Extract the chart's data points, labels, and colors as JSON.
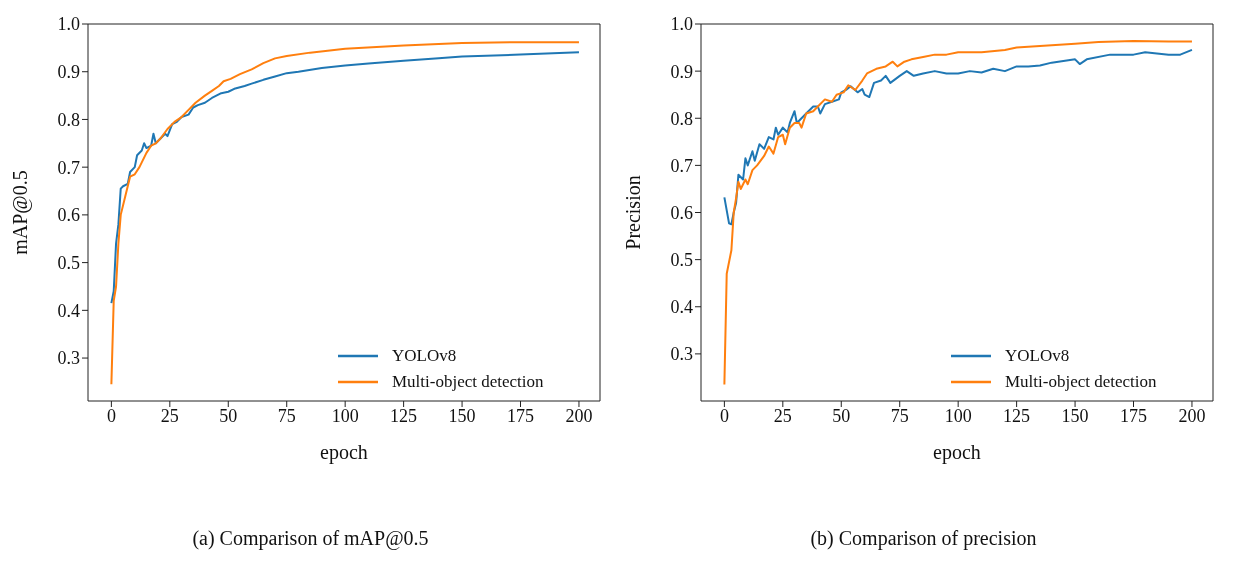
{
  "chart_data": [
    {
      "type": "line",
      "title": "(a) Comparison of mAP@0.5",
      "xlabel": "epoch",
      "ylabel": "mAP@0.5",
      "xlim": [
        -10,
        209
      ],
      "xticks": [
        0,
        25,
        50,
        75,
        100,
        125,
        150,
        175,
        200
      ],
      "ylim": [
        0.21,
        1.0
      ],
      "yticks": [
        0.3,
        0.4,
        0.5,
        0.6,
        0.7,
        0.8,
        0.9,
        {
          "value": 1.0,
          "label": "1.0"
        }
      ],
      "grid": false,
      "legend": "bottom right",
      "marker": "none",
      "line_style": "solid",
      "series": [
        {
          "name": "YOLOv8",
          "color": "#1f77b4",
          "x": [
            0,
            1,
            2,
            3,
            4,
            5,
            7,
            8,
            10,
            11,
            13,
            14,
            15,
            17,
            18,
            19,
            21,
            23,
            24,
            26,
            28,
            30,
            33,
            35,
            37,
            40,
            43,
            47,
            50,
            53,
            57,
            60,
            65,
            70,
            75,
            80,
            90,
            100,
            110,
            125,
            140,
            150,
            175,
            200
          ],
          "values": [
            0.415,
            0.44,
            0.54,
            0.58,
            0.655,
            0.66,
            0.665,
            0.69,
            0.7,
            0.725,
            0.735,
            0.75,
            0.74,
            0.745,
            0.77,
            0.75,
            0.76,
            0.77,
            0.765,
            0.79,
            0.795,
            0.805,
            0.81,
            0.825,
            0.83,
            0.835,
            0.845,
            0.855,
            0.858,
            0.865,
            0.87,
            0.875,
            0.883,
            0.89,
            0.897,
            0.9,
            0.908,
            0.913,
            0.917,
            0.923,
            0.928,
            0.932,
            0.936,
            0.941
          ]
        },
        {
          "name": "Multi-object detection",
          "color": "#ff7f0e",
          "x": [
            0,
            1,
            2,
            3,
            4,
            6,
            8,
            10,
            12,
            13,
            15,
            17,
            19,
            21,
            24,
            27,
            30,
            33,
            36,
            40,
            43,
            46,
            48,
            51,
            55,
            60,
            65,
            70,
            75,
            85,
            100,
            125,
            150,
            175,
            200
          ],
          "values": [
            0.245,
            0.42,
            0.45,
            0.54,
            0.6,
            0.64,
            0.68,
            0.685,
            0.7,
            0.71,
            0.73,
            0.745,
            0.75,
            0.76,
            0.78,
            0.795,
            0.805,
            0.82,
            0.835,
            0.85,
            0.86,
            0.87,
            0.88,
            0.885,
            0.895,
            0.905,
            0.918,
            0.928,
            0.933,
            0.94,
            0.948,
            0.955,
            0.96,
            0.962,
            0.962
          ]
        }
      ]
    },
    {
      "type": "line",
      "title": "(b) Comparison of precision",
      "xlabel": "epoch",
      "ylabel": "Precision",
      "xlim": [
        -10,
        209
      ],
      "xticks": [
        0,
        25,
        50,
        75,
        100,
        125,
        150,
        175,
        200
      ],
      "ylim": [
        0.2,
        1.0
      ],
      "yticks": [
        0.3,
        0.4,
        0.5,
        0.6,
        0.7,
        0.8,
        0.9,
        {
          "value": 1.0,
          "label": "1.0"
        }
      ],
      "grid": false,
      "legend": "bottom right",
      "marker": "none",
      "line_style": "solid",
      "series": [
        {
          "name": "YOLOv8",
          "color": "#1f77b4",
          "x": [
            0,
            2,
            3,
            4,
            5,
            6,
            8,
            9,
            10,
            12,
            13,
            15,
            17,
            19,
            21,
            22,
            23,
            25,
            27,
            28,
            30,
            31,
            33,
            35,
            38,
            40,
            41,
            43,
            46,
            49,
            50,
            52,
            54,
            57,
            59,
            60,
            62,
            64,
            67,
            69,
            71,
            75,
            78,
            81,
            85,
            90,
            95,
            100,
            105,
            110,
            115,
            120,
            125,
            130,
            135,
            140,
            150,
            152,
            155,
            165,
            175,
            180,
            190,
            195,
            200
          ],
          "values": [
            0.632,
            0.577,
            0.575,
            0.6,
            0.62,
            0.68,
            0.67,
            0.715,
            0.7,
            0.73,
            0.71,
            0.745,
            0.735,
            0.76,
            0.755,
            0.78,
            0.765,
            0.78,
            0.77,
            0.79,
            0.815,
            0.79,
            0.8,
            0.81,
            0.825,
            0.825,
            0.81,
            0.83,
            0.835,
            0.84,
            0.855,
            0.86,
            0.868,
            0.855,
            0.862,
            0.85,
            0.845,
            0.875,
            0.88,
            0.89,
            0.875,
            0.89,
            0.9,
            0.89,
            0.895,
            0.9,
            0.895,
            0.895,
            0.9,
            0.897,
            0.905,
            0.9,
            0.91,
            0.91,
            0.912,
            0.918,
            0.925,
            0.915,
            0.925,
            0.935,
            0.935,
            0.94,
            0.935,
            0.935,
            0.945
          ]
        },
        {
          "name": "Multi-object detection",
          "color": "#ff7f0e",
          "x": [
            0,
            1,
            3,
            4,
            5,
            6,
            7,
            9,
            10,
            12,
            14,
            17,
            19,
            21,
            23,
            25,
            26,
            28,
            30,
            32,
            33,
            35,
            38,
            40,
            43,
            46,
            48,
            51,
            53,
            56,
            59,
            61,
            65,
            69,
            72,
            74,
            77,
            80,
            85,
            90,
            95,
            100,
            110,
            120,
            125,
            140,
            150,
            160,
            175,
            190,
            200
          ],
          "values": [
            0.235,
            0.47,
            0.52,
            0.6,
            0.63,
            0.665,
            0.65,
            0.67,
            0.66,
            0.69,
            0.7,
            0.72,
            0.74,
            0.725,
            0.76,
            0.765,
            0.745,
            0.78,
            0.79,
            0.79,
            0.78,
            0.81,
            0.815,
            0.825,
            0.84,
            0.835,
            0.85,
            0.855,
            0.87,
            0.86,
            0.88,
            0.895,
            0.905,
            0.91,
            0.92,
            0.91,
            0.92,
            0.925,
            0.93,
            0.935,
            0.935,
            0.94,
            0.94,
            0.945,
            0.95,
            0.955,
            0.958,
            0.962,
            0.964,
            0.963,
            0.963
          ]
        }
      ]
    }
  ]
}
